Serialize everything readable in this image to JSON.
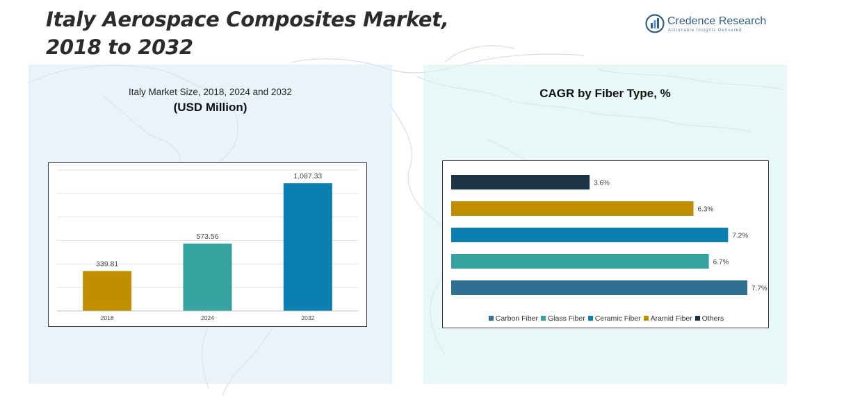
{
  "page": {
    "title_line1": "Italy Aerospace Composites Market,",
    "title_line2": "2018 to 2032"
  },
  "logo": {
    "name": "Credence Research",
    "tagline": "Actionable Insights Delivered",
    "color": "#2f5f8a"
  },
  "chart_data": [
    {
      "type": "bar",
      "title": "Italy Market Size, 2018, 2024 and 2032",
      "subtitle": "(USD Million)",
      "categories": [
        "2018",
        "2024",
        "2032"
      ],
      "values": [
        339.81,
        573.56,
        1087.33
      ],
      "value_labels": [
        "339.81",
        "573.56",
        "1,087.33"
      ],
      "colors": [
        "#bf8f00",
        "#35a39f",
        "#0a7fb0"
      ],
      "ylim": [
        0,
        1200
      ],
      "grid": true,
      "xlabel": "",
      "ylabel": ""
    },
    {
      "type": "bar",
      "orientation": "horizontal",
      "title": "CAGR by Fiber Type, %",
      "categories": [
        "Carbon Fiber",
        "Glass Fiber",
        "Ceramic Fiber",
        "Aramid Fiber",
        "Others"
      ],
      "values": [
        7.7,
        6.7,
        7.2,
        6.3,
        3.6
      ],
      "value_labels": [
        "7.7%",
        "6.7%",
        "7.2%",
        "6.3%",
        "3.6%"
      ],
      "colors": [
        "#2f6f94",
        "#35a39f",
        "#0a7fb0",
        "#bf8f00",
        "#1c3546"
      ],
      "xlim": [
        0,
        7.7
      ],
      "legend": "bottom"
    }
  ]
}
